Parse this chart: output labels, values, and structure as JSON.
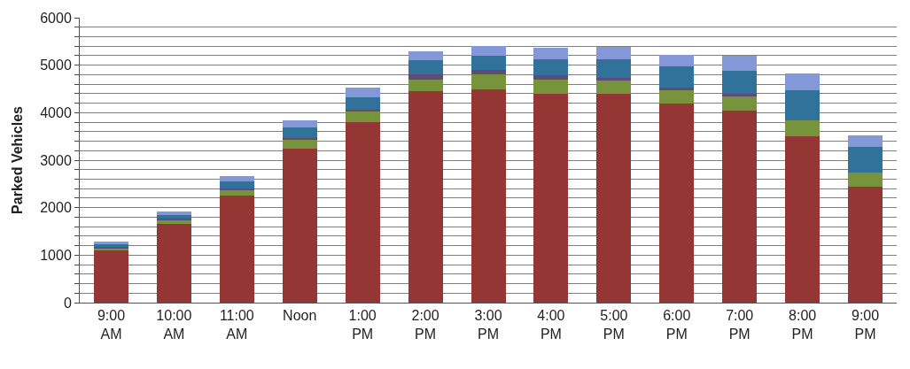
{
  "chart_data": {
    "type": "bar",
    "stacked": true,
    "ylabel": "Parked Vehicles",
    "categories": [
      "9:00\nAM",
      "10:00\nAM",
      "11:00\nAM",
      "Noon",
      "1:00\nPM",
      "2:00\nPM",
      "3:00\nPM",
      "4:00\nPM",
      "5:00\nPM",
      "6:00\nPM",
      "7:00\nPM",
      "8:00\nPM",
      "9:00\nPM"
    ],
    "series": [
      {
        "color": "#943634",
        "values": [
          1100,
          1650,
          2250,
          3250,
          3800,
          4450,
          4500,
          4400,
          4400,
          4200,
          4050,
          3500,
          2450
        ]
      },
      {
        "color": "#77933c",
        "values": [
          30,
          80,
          110,
          170,
          220,
          250,
          300,
          300,
          280,
          280,
          300,
          330,
          280
        ]
      },
      {
        "color": "#604a7b",
        "values": [
          40,
          40,
          40,
          40,
          50,
          100,
          100,
          80,
          50,
          40,
          40,
          0,
          0
        ]
      },
      {
        "color": "#31729b",
        "values": [
          60,
          80,
          150,
          230,
          250,
          300,
          300,
          350,
          400,
          450,
          500,
          650,
          550
        ]
      },
      {
        "color": "#8497d6",
        "values": [
          50,
          70,
          110,
          150,
          200,
          200,
          200,
          230,
          250,
          250,
          300,
          350,
          250
        ]
      }
    ],
    "ylim": [
      0,
      6000
    ],
    "yticks": [
      0,
      {
        "value": 200,
        "label": null
      },
      {
        "value": 400,
        "label": null
      },
      {
        "value": 600,
        "label": null
      },
      {
        "value": 800,
        "label": null
      },
      1000,
      {
        "value": 1200,
        "label": null
      },
      {
        "value": 1400,
        "label": null
      },
      {
        "value": 1600,
        "label": null
      },
      {
        "value": 1800,
        "label": null
      },
      2000,
      {
        "value": 2200,
        "label": null
      },
      {
        "value": 2400,
        "label": null
      },
      {
        "value": 2600,
        "label": null
      },
      {
        "value": 2800,
        "label": null
      },
      3000,
      {
        "value": 3200,
        "label": null
      },
      {
        "value": 3400,
        "label": null
      },
      {
        "value": 3600,
        "label": null
      },
      {
        "value": 3800,
        "label": null
      },
      4000,
      {
        "value": 4200,
        "label": null
      },
      {
        "value": 4400,
        "label": null
      },
      {
        "value": 4600,
        "label": null
      },
      {
        "value": 4800,
        "label": null
      },
      5000,
      {
        "value": 5200,
        "label": null
      },
      {
        "value": 5400,
        "label": null
      },
      {
        "value": 5600,
        "label": null
      },
      {
        "value": 5800,
        "label": null
      },
      6000
    ],
    "grid": "y"
  }
}
